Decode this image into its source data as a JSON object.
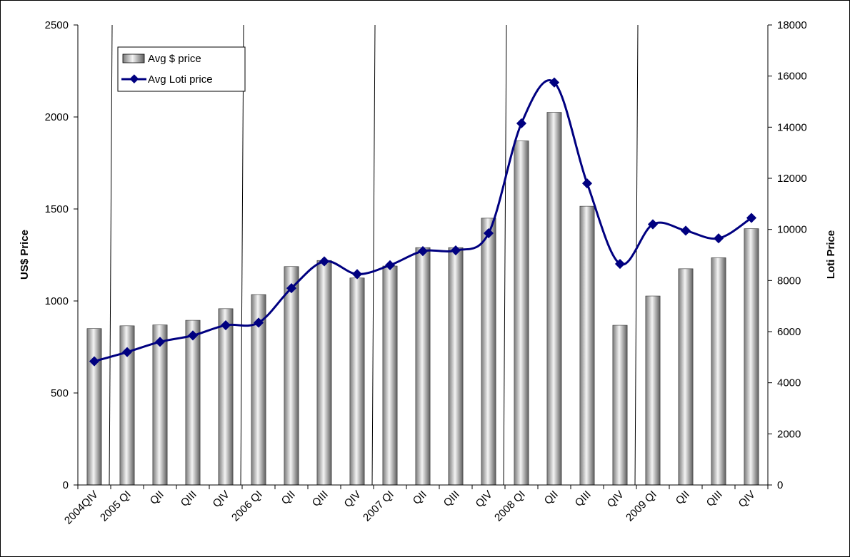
{
  "chart_data": {
    "type": "bar",
    "title": "",
    "categories": [
      "2004QIV",
      "2005 QI",
      "QII",
      "QIII",
      "QIV",
      "2006 QI",
      "QII",
      "QIII",
      "QIV",
      "2007 QI",
      "QII",
      "QIII",
      "QIV",
      "2008 QI",
      "QII",
      "QIII",
      "QIV",
      "2009 QI",
      "QII",
      "QIII",
      "QIV"
    ],
    "series": [
      {
        "name": "Avg $ price",
        "type": "bar",
        "axis": "left",
        "values": [
          850,
          865,
          870,
          895,
          958,
          1035,
          1187,
          1220,
          1125,
          1190,
          1290,
          1290,
          1450,
          1870,
          2025,
          1515,
          868,
          1027,
          1175,
          1235,
          1393
        ]
      },
      {
        "name": "Avg Loti price",
        "type": "line",
        "axis": "right",
        "values": [
          4840,
          5200,
          5600,
          5850,
          6250,
          6350,
          7700,
          8750,
          8250,
          8600,
          9150,
          9180,
          9850,
          14150,
          15750,
          11800,
          8650,
          10200,
          9950,
          9650,
          10450
        ]
      }
    ],
    "ylabel": "US$ Price",
    "y2label": "Loti Price",
    "ylim": [
      0,
      2500
    ],
    "yticks": [
      0,
      500,
      1000,
      1500,
      2000,
      2500
    ],
    "y2lim": [
      0,
      18000
    ],
    "y2ticks": [
      0,
      2000,
      4000,
      6000,
      8000,
      10000,
      12000,
      14000,
      16000,
      18000
    ],
    "year_dividers_after_index": [
      0.5,
      4.5,
      8.5,
      12.5,
      16.5
    ],
    "grid": false,
    "legend_position": "top-left",
    "colors": {
      "line": "#000080",
      "bar_light": "#f2f2f2",
      "bar_dark": "#6a6a6a",
      "axis": "#000000"
    }
  }
}
